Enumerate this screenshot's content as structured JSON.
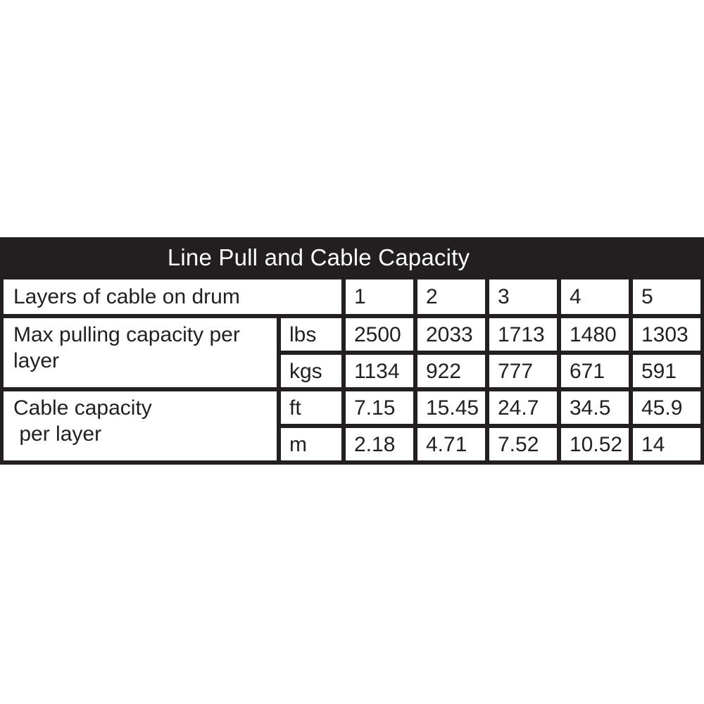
{
  "title": "Line Pull and Cable Capacity",
  "colors": {
    "table_background": "#231f20",
    "cell_background": "#ffffff",
    "title_text": "#ffffff",
    "cell_text": "#231f20"
  },
  "table": {
    "header_row": {
      "label": "Layers of cable on drum",
      "columns": [
        "1",
        "2",
        "3",
        "4",
        "5"
      ]
    },
    "sections": [
      {
        "label": "Max pulling capacity per\nlayer",
        "rows": [
          {
            "unit": "lbs",
            "values": [
              "2500",
              "2033",
              "1713",
              "1480",
              "1303"
            ]
          },
          {
            "unit": "kgs",
            "values": [
              "1134",
              "922",
              "777",
              "671",
              "591"
            ]
          }
        ]
      },
      {
        "label": "Cable capacity\n per layer",
        "rows": [
          {
            "unit": "ft",
            "values": [
              "7.15",
              "15.45",
              "24.7",
              "34.5",
              "45.9"
            ]
          },
          {
            "unit": "m",
            "values": [
              "2.18",
              "4.71",
              "7.52",
              "10.52",
              "14"
            ]
          }
        ]
      }
    ]
  },
  "chart_data": {
    "type": "table",
    "title": "Line Pull and Cable Capacity",
    "columns": [
      "Layers of cable on drum",
      "1",
      "2",
      "3",
      "4",
      "5"
    ],
    "rows": [
      {
        "label": "Max pulling capacity per layer",
        "unit": "lbs",
        "values": [
          2500,
          2033,
          1713,
          1480,
          1303
        ]
      },
      {
        "label": "Max pulling capacity per layer",
        "unit": "kgs",
        "values": [
          1134,
          922,
          777,
          671,
          591
        ]
      },
      {
        "label": "Cable capacity per layer",
        "unit": "ft",
        "values": [
          7.15,
          15.45,
          24.7,
          34.5,
          45.9
        ]
      },
      {
        "label": "Cable capacity per layer",
        "unit": "m",
        "values": [
          2.18,
          4.71,
          7.52,
          10.52,
          14
        ]
      }
    ]
  }
}
